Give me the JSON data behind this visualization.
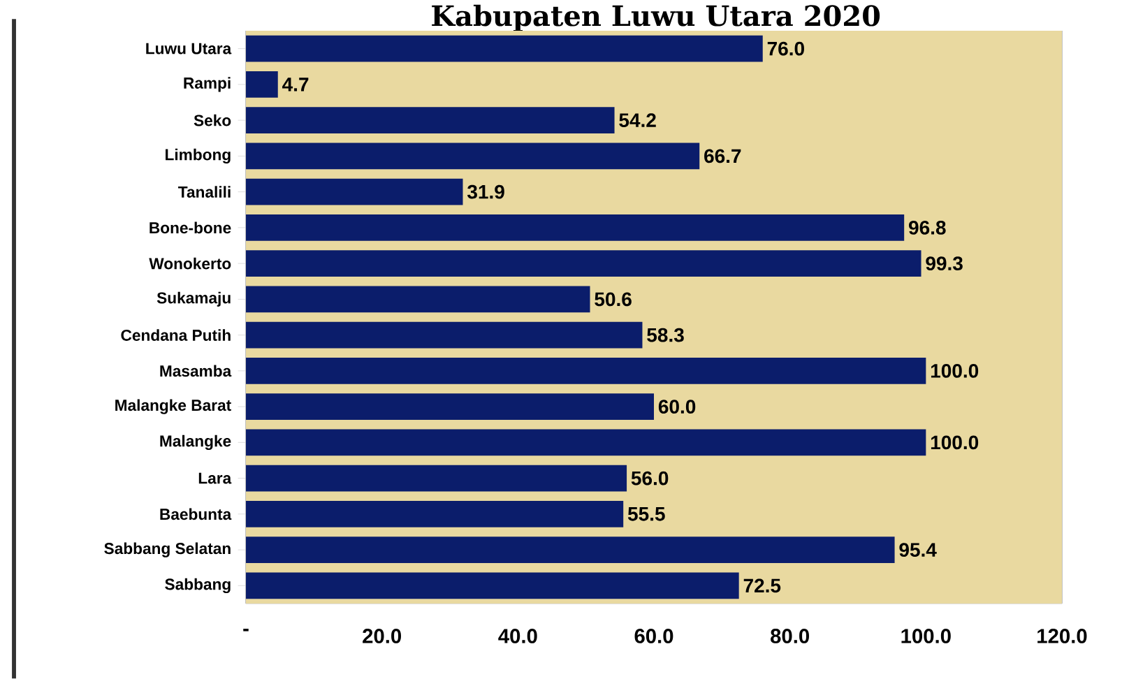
{
  "chart_data": {
    "type": "bar",
    "orientation": "horizontal",
    "title": "Kabupaten Luwu Utara 2020",
    "categories": [
      "Luwu Utara",
      "Rampi",
      "Seko",
      "Limbong",
      "Tanalili",
      "Bone-bone",
      "Wonokerto",
      "Sukamaju",
      "Cendana Putih",
      "Masamba",
      "Malangke Barat",
      "Malangke",
      "Lara",
      "Baebunta",
      "Sabbang Selatan",
      "Sabbang"
    ],
    "values": [
      76.0,
      4.7,
      54.2,
      66.7,
      31.9,
      96.8,
      99.3,
      50.6,
      58.3,
      100.0,
      60.0,
      100.0,
      56.0,
      55.5,
      95.4,
      72.5
    ],
    "value_labels": [
      "76.0",
      "4.7",
      "54.2",
      "66.7",
      "31.9",
      "96.8",
      "99.3",
      "50.6",
      "58.3",
      "100.0",
      "60.0",
      "100.0",
      "56.0",
      "55.5",
      "95.4",
      "72.5"
    ],
    "color": "#0b1d6b",
    "xlim": [
      0,
      120
    ],
    "xticks": [
      {
        "value": 0,
        "label": "-"
      },
      {
        "value": 20,
        "label": "20.0"
      },
      {
        "value": 40,
        "label": "40.0"
      },
      {
        "value": 60,
        "label": "60.0"
      },
      {
        "value": 80,
        "label": "80.0"
      },
      {
        "value": 100,
        "label": "100.0"
      },
      {
        "value": 120,
        "label": "120.0"
      }
    ],
    "grid": "x"
  }
}
